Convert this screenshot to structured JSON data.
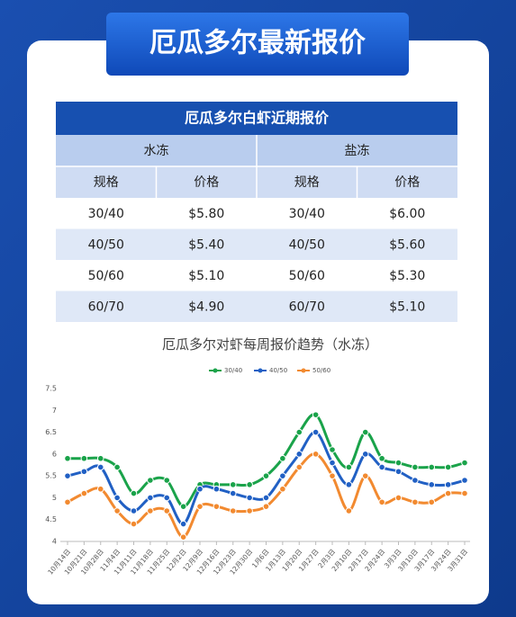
{
  "header": {
    "title": "厄瓜多尔最新报价"
  },
  "table": {
    "title": "厄瓜多尔白虾近期报价",
    "groups": [
      "水冻",
      "盐冻"
    ],
    "header": [
      "规格",
      "价格",
      "规格",
      "价格"
    ],
    "rows": [
      [
        "30/40",
        "$5.80",
        "30/40",
        "$6.00"
      ],
      [
        "40/50",
        "$5.40",
        "40/50",
        "$5.60"
      ],
      [
        "50/60",
        "$5.10",
        "50/60",
        "$5.30"
      ],
      [
        "60/70",
        "$4.90",
        "60/70",
        "$5.10"
      ]
    ]
  },
  "chart_data": {
    "type": "line",
    "title": "厄瓜多尔对虾每周报价趋势（水冻）",
    "categories": [
      "10月14日",
      "10月21日",
      "10月28日",
      "11月4日",
      "11月11日",
      "11月18日",
      "11月25日",
      "12月2日",
      "12月9日",
      "12月16日",
      "12月23日",
      "12月30日",
      "1月6日",
      "1月13日",
      "1月20日",
      "1月27日",
      "2月3日",
      "2月10日",
      "2月17日",
      "2月24日",
      "3月3日",
      "3月10日",
      "3月17日",
      "3月24日",
      "3月31日"
    ],
    "series": [
      {
        "name": "30/40",
        "color": "#1aa34a",
        "values": [
          5.9,
          5.9,
          5.9,
          5.7,
          5.1,
          5.4,
          5.4,
          4.8,
          5.3,
          5.3,
          5.3,
          5.3,
          5.5,
          5.9,
          6.5,
          6.9,
          6.1,
          5.7,
          6.5,
          5.9,
          5.8,
          5.7,
          5.7,
          5.7,
          5.8
        ]
      },
      {
        "name": "40/50",
        "color": "#2160c4",
        "values": [
          5.5,
          5.6,
          5.7,
          5.0,
          4.7,
          5.0,
          5.0,
          4.4,
          5.2,
          5.2,
          5.1,
          5.0,
          5.0,
          5.5,
          6.0,
          6.5,
          5.8,
          5.3,
          6.0,
          5.7,
          5.6,
          5.4,
          5.3,
          5.3,
          5.4
        ]
      },
      {
        "name": "50/60",
        "color": "#f28a30",
        "values": [
          4.9,
          5.1,
          5.2,
          4.7,
          4.4,
          4.7,
          4.7,
          4.1,
          4.8,
          4.8,
          4.7,
          4.7,
          4.8,
          5.2,
          5.7,
          6.0,
          5.5,
          4.7,
          5.5,
          4.9,
          5.0,
          4.9,
          4.9,
          5.1,
          5.1
        ]
      }
    ],
    "ylim": [
      4,
      7.5
    ],
    "yticks": [
      4,
      4.5,
      5,
      5.5,
      6,
      6.5,
      7,
      7.5
    ],
    "grid": false,
    "legend": "top"
  }
}
